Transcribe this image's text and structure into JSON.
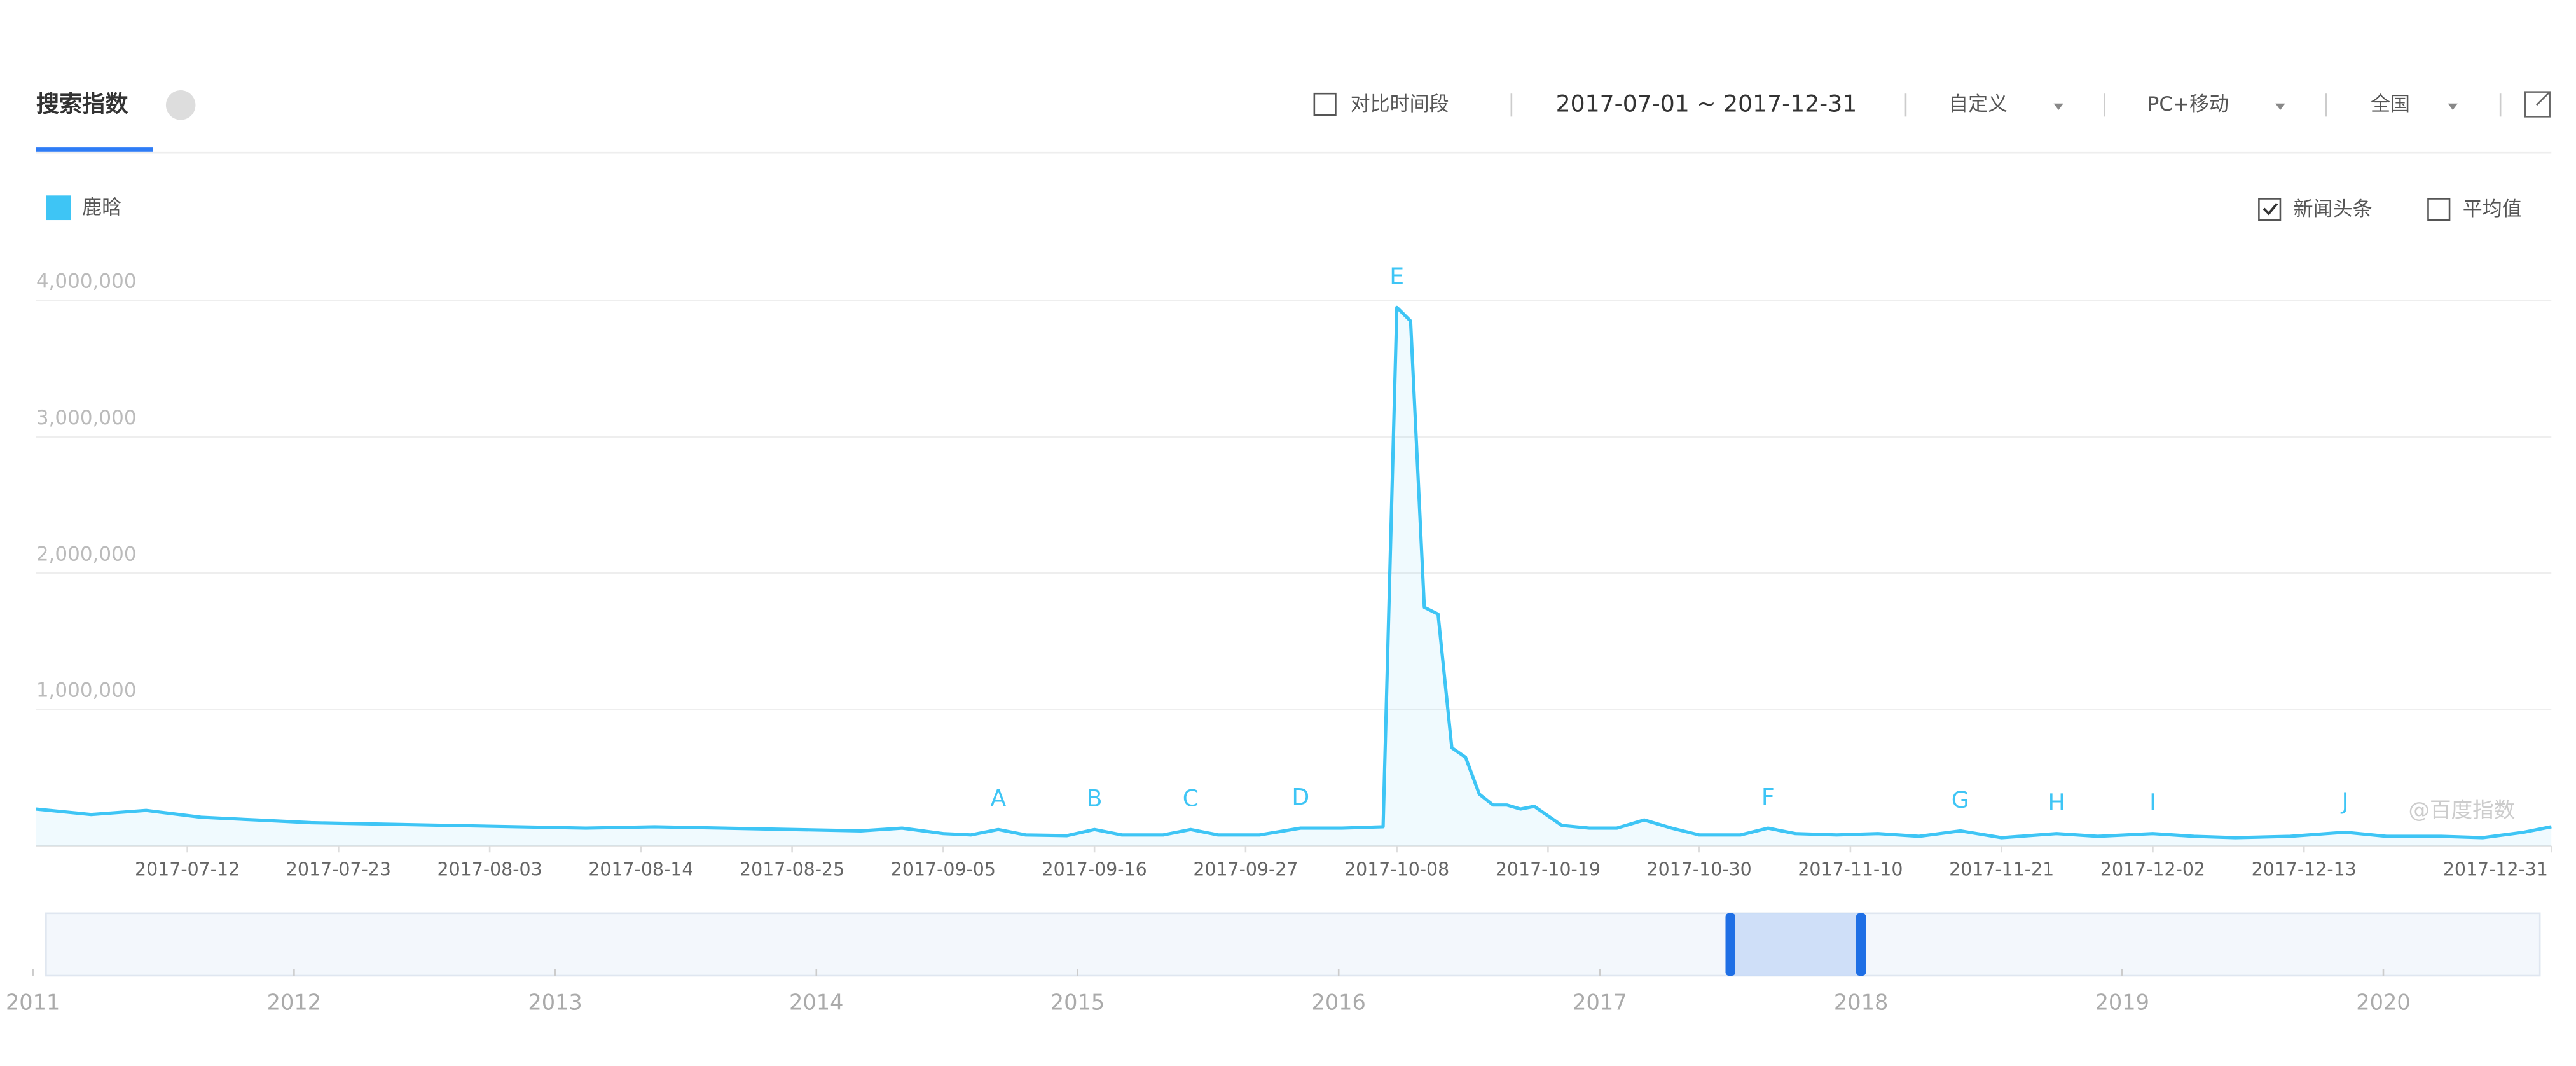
{
  "header": {
    "title": "搜索指数",
    "compare": "对比时间段",
    "date_range": "2017-07-01 ~ 2017-12-31",
    "options": [
      "自定义",
      "PC+移动",
      "全国"
    ]
  },
  "controls": [
    {
      "label": "新闻头条",
      "checked": true
    },
    {
      "label": "平均值",
      "checked": false
    }
  ],
  "chart_data": {
    "type": "line",
    "x": [
      "2017-07-01",
      "2017-07-05",
      "2017-07-09",
      "2017-07-13",
      "2017-07-17",
      "2017-07-21",
      "2017-07-26",
      "2017-07-31",
      "2017-08-05",
      "2017-08-10",
      "2017-08-15",
      "2017-08-20",
      "2017-08-25",
      "2017-08-30",
      "2017-09-02",
      "2017-09-05",
      "2017-09-07",
      "2017-09-09",
      "2017-09-11",
      "2017-09-14",
      "2017-09-16",
      "2017-09-18",
      "2017-09-21",
      "2017-09-23",
      "2017-09-25",
      "2017-09-28",
      "2017-10-01",
      "2017-10-04",
      "2017-10-07",
      "2017-10-08",
      "2017-10-09",
      "2017-10-10",
      "2017-10-11",
      "2017-10-12",
      "2017-10-13",
      "2017-10-14",
      "2017-10-15",
      "2017-10-16",
      "2017-10-17",
      "2017-10-18",
      "2017-10-19",
      "2017-10-20",
      "2017-10-22",
      "2017-10-24",
      "2017-10-26",
      "2017-10-28",
      "2017-10-30",
      "2017-11-02",
      "2017-11-04",
      "2017-11-06",
      "2017-11-09",
      "2017-11-12",
      "2017-11-15",
      "2017-11-18",
      "2017-11-21",
      "2017-11-25",
      "2017-11-28",
      "2017-12-02",
      "2017-12-05",
      "2017-12-08",
      "2017-12-12",
      "2017-12-16",
      "2017-12-19",
      "2017-12-23",
      "2017-12-26",
      "2017-12-29",
      "2017-12-31"
    ],
    "series": [
      {
        "name": "鹿晗",
        "color": "#3ec5f5",
        "values": [
          270000,
          230000,
          260000,
          210000,
          190000,
          170000,
          160000,
          150000,
          140000,
          130000,
          140000,
          130000,
          120000,
          110000,
          130000,
          90000,
          80000,
          120000,
          80000,
          75000,
          120000,
          80000,
          80000,
          120000,
          80000,
          80000,
          130000,
          130000,
          140000,
          3950000,
          3850000,
          1750000,
          1700000,
          720000,
          650000,
          380000,
          300000,
          300000,
          270000,
          290000,
          220000,
          150000,
          130000,
          130000,
          190000,
          130000,
          80000,
          80000,
          130000,
          90000,
          80000,
          90000,
          70000,
          110000,
          60000,
          90000,
          70000,
          90000,
          70000,
          60000,
          70000,
          100000,
          70000,
          70000,
          60000,
          100000,
          140000
        ]
      }
    ],
    "xlim": [
      "2017-07-01",
      "2017-12-31"
    ],
    "xticks": [
      "2017-07-12",
      "2017-07-23",
      "2017-08-03",
      "2017-08-14",
      "2017-08-25",
      "2017-09-05",
      "2017-09-16",
      "2017-09-27",
      "2017-10-08",
      "2017-10-19",
      "2017-10-30",
      "2017-11-10",
      "2017-11-21",
      "2017-12-02",
      "2017-12-13",
      "2017-12-31"
    ],
    "ylim": [
      0,
      4000000
    ],
    "yticks": [
      {
        "value": 1000000,
        "label": "1,000,000"
      },
      {
        "value": 2000000,
        "label": "2,000,000"
      },
      {
        "value": 3000000,
        "label": "3,000,000"
      },
      {
        "value": 4000000,
        "label": "4,000,000"
      }
    ],
    "grid": true,
    "annotations": [
      {
        "label": "A",
        "x": "2017-09-09"
      },
      {
        "label": "B",
        "x": "2017-09-16"
      },
      {
        "label": "C",
        "x": "2017-09-23"
      },
      {
        "label": "D",
        "x": "2017-10-01"
      },
      {
        "label": "E",
        "x": "2017-10-08"
      },
      {
        "label": "F",
        "x": "2017-11-04"
      },
      {
        "label": "G",
        "x": "2017-11-18"
      },
      {
        "label": "H",
        "x": "2017-11-25"
      },
      {
        "label": "I",
        "x": "2017-12-02"
      },
      {
        "label": "J",
        "x": "2017-12-16"
      }
    ],
    "watermark": "@百度指数",
    "navigator": {
      "xlim": [
        2011,
        2020.7
      ],
      "xticks": [
        2011,
        2012,
        2013,
        2014,
        2015,
        2016,
        2017,
        2018,
        2019,
        2020
      ],
      "selection": [
        2017.5,
        2018
      ]
    }
  }
}
